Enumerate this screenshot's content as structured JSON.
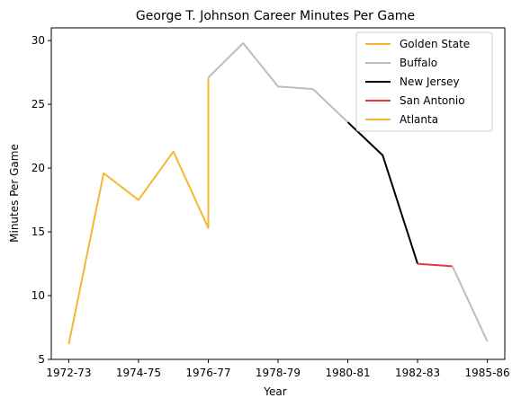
{
  "chart_data": {
    "type": "line",
    "title": "George T. Johnson Career Minutes Per Game",
    "xlabel": "Year",
    "ylabel": "Minutes Per Game",
    "ylim": [
      5,
      31
    ],
    "y_ticks": [
      5,
      10,
      15,
      20,
      25,
      30
    ],
    "x_tick_labels": [
      "1972-73",
      "1974-75",
      "1976-77",
      "1978-79",
      "1980-81",
      "1982-83",
      "1985-86"
    ],
    "x_tick_positions": [
      0,
      2,
      4,
      6,
      8,
      10,
      12
    ],
    "xlim": [
      -0.5,
      12.5
    ],
    "grid": false,
    "legend_position": "top-right",
    "series": [
      {
        "name": "Golden State",
        "color": "#f5b731",
        "x": [
          0,
          1,
          2,
          3,
          4,
          4
        ],
        "y": [
          6.2,
          19.6,
          17.5,
          21.3,
          15.3,
          27.1
        ]
      },
      {
        "name": "Buffalo",
        "color": "#bdbdbd",
        "x": [
          4,
          5,
          6,
          7,
          8
        ],
        "y": [
          27.1,
          29.8,
          26.4,
          26.2,
          23.6
        ]
      },
      {
        "name": "New Jersey",
        "color": "#000000",
        "x": [
          8,
          9,
          10
        ],
        "y": [
          23.6,
          21.0,
          12.5
        ]
      },
      {
        "name": "San Antonio",
        "color": "#e03a3e",
        "x": [
          10,
          11
        ],
        "y": [
          12.5,
          12.3
        ]
      },
      {
        "name": "Atlanta",
        "color": "#f5b731",
        "x": [
          11,
          12
        ],
        "y": [
          12.3,
          6.4
        ],
        "drawn_color": "#bdbdbd"
      }
    ]
  }
}
